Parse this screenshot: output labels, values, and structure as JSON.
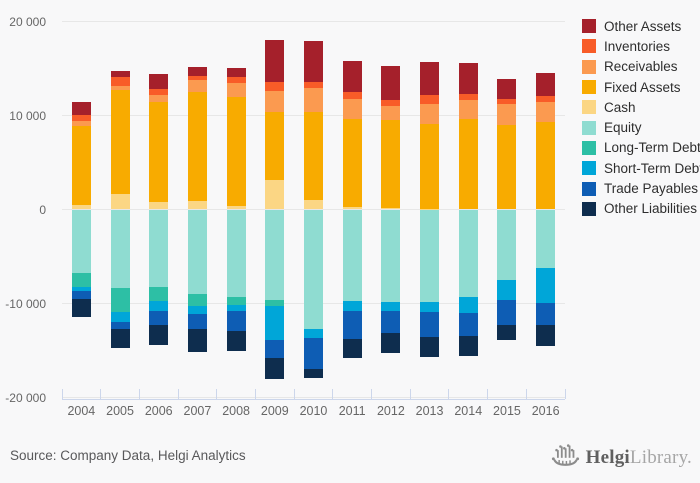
{
  "chart_data": {
    "type": "bar",
    "stacked": true,
    "orientation": "vertical-diverging",
    "title": "",
    "categories": [
      "2004",
      "2005",
      "2006",
      "2007",
      "2008",
      "2009",
      "2010",
      "2011",
      "2012",
      "2013",
      "2014",
      "2015",
      "2016"
    ],
    "series": [
      {
        "name": "Other Assets",
        "color": "#a5202b",
        "values": [
          1370,
          650,
          1590,
          970,
          940,
          4460,
          4360,
          3250,
          3610,
          3500,
          3350,
          2160,
          2450
        ]
      },
      {
        "name": "Inventories",
        "color": "#f85c28",
        "values": [
          620,
          900,
          680,
          390,
          610,
          970,
          610,
          820,
          650,
          940,
          620,
          510,
          580
        ]
      },
      {
        "name": "Receivables",
        "color": "#fb9a50",
        "values": [
          570,
          510,
          720,
          1270,
          1450,
          2240,
          2530,
          2060,
          1440,
          2090,
          1980,
          2240,
          2160
        ]
      },
      {
        "name": "Fixed Assets",
        "color": "#f8ab00",
        "values": [
          8330,
          10990,
          10640,
          11610,
          11690,
          7300,
          9370,
          9380,
          9380,
          9030,
          9670,
          8980,
          9310
        ]
      },
      {
        "name": "Cash",
        "color": "#fbd684",
        "values": [
          510,
          1670,
          800,
          910,
          320,
          3100,
          1020,
          290,
          180,
          100,
          0,
          0,
          0
        ]
      },
      {
        "name": "Equity",
        "color": "#8fdcd1",
        "values": [
          -6800,
          -8400,
          -8200,
          -9000,
          -9300,
          -9600,
          -12700,
          -9700,
          -9850,
          -9800,
          -9300,
          -7500,
          -6220
        ]
      },
      {
        "name": "Long-Term Debt",
        "color": "#2dbfa5",
        "values": [
          -1400,
          -2550,
          -1500,
          -1250,
          -880,
          -690,
          0,
          0,
          0,
          0,
          0,
          0,
          0
        ]
      },
      {
        "name": "Short-Term Debt",
        "color": "#00a6d8",
        "values": [
          -420,
          -1060,
          -1050,
          -870,
          -590,
          -3620,
          -1000,
          -1050,
          -990,
          -1110,
          -1750,
          -2080,
          -3700
        ]
      },
      {
        "name": "Trade Payables",
        "color": "#0e5db4",
        "values": [
          -900,
          -700,
          -1500,
          -1600,
          -2110,
          -1880,
          -3300,
          -3000,
          -2350,
          -2650,
          -2420,
          -2660,
          -2410
        ]
      },
      {
        "name": "Other Liabilities",
        "color": "#0e2d4e",
        "values": [
          -1880,
          -2010,
          -2180,
          -2430,
          -2130,
          -2280,
          -890,
          -2050,
          -2070,
          -2100,
          -2150,
          -1650,
          -2170
        ]
      }
    ],
    "yticks": [
      20000,
      10000,
      0,
      -10000,
      -20000
    ],
    "ytick_labels": [
      "20 000",
      "10 000",
      "0",
      "-10 000",
      "-20 000"
    ],
    "ylim": [
      -20000,
      20000
    ],
    "xlabel": "",
    "ylabel": "",
    "grid": true,
    "legend_position": "right"
  },
  "footer": {
    "source": "Source: Company Data, Helgi Analytics"
  },
  "logo": {
    "brand_bold": "Helgi",
    "brand_light": "Library."
  }
}
